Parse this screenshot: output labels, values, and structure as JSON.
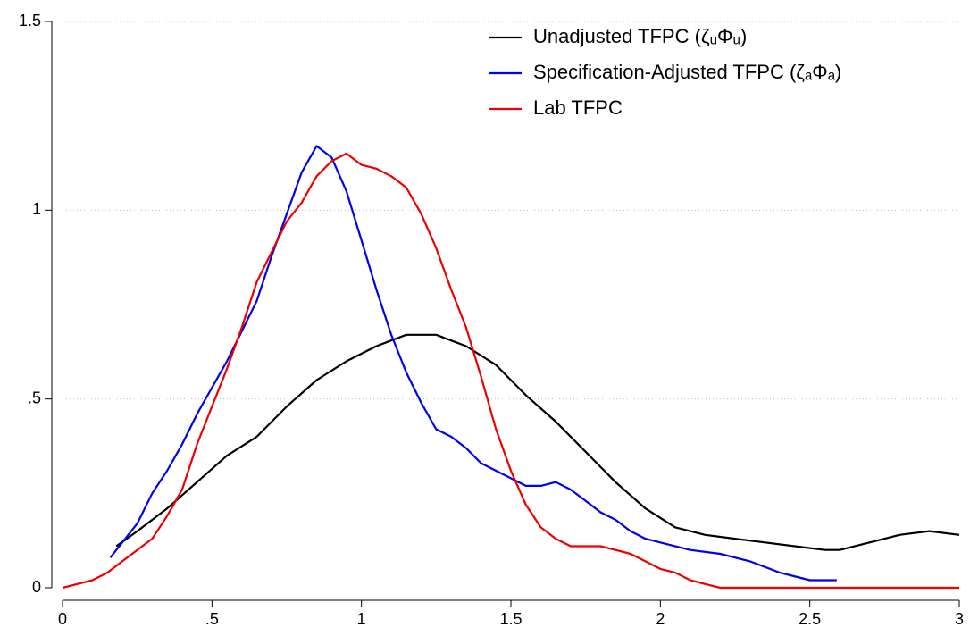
{
  "chart_data": {
    "type": "line",
    "series": [
      {
        "name": "Unadjusted TFPC (ζᵤΦᵤ)",
        "color": "#000000",
        "x": [
          0.18,
          0.25,
          0.35,
          0.45,
          0.55,
          0.65,
          0.75,
          0.85,
          0.95,
          1.05,
          1.15,
          1.25,
          1.35,
          1.45,
          1.55,
          1.65,
          1.75,
          1.85,
          1.95,
          2.05,
          2.15,
          2.25,
          2.35,
          2.45,
          2.55,
          2.6,
          2.7,
          2.8,
          2.9,
          3
        ],
        "values": [
          0.11,
          0.15,
          0.21,
          0.28,
          0.35,
          0.4,
          0.48,
          0.55,
          0.6,
          0.64,
          0.67,
          0.67,
          0.64,
          0.59,
          0.51,
          0.44,
          0.36,
          0.28,
          0.21,
          0.16,
          0.14,
          0.13,
          0.12,
          0.11,
          0.1,
          0.1,
          0.12,
          0.14,
          0.15,
          0.14
        ]
      },
      {
        "name": "Specification-Adjusted TFPC (ζₐΦₐ)",
        "color": "#0000ee",
        "x": [
          0.16,
          0.2,
          0.25,
          0.3,
          0.35,
          0.4,
          0.45,
          0.5,
          0.55,
          0.6,
          0.65,
          0.7,
          0.75,
          0.8,
          0.85,
          0.9,
          0.95,
          1,
          1.05,
          1.1,
          1.15,
          1.2,
          1.25,
          1.3,
          1.35,
          1.4,
          1.45,
          1.5,
          1.55,
          1.6,
          1.65,
          1.7,
          1.75,
          1.8,
          1.85,
          1.9,
          1.95,
          2,
          2.1,
          2.2,
          2.3,
          2.4,
          2.5,
          2.59
        ],
        "values": [
          0.08,
          0.12,
          0.17,
          0.25,
          0.31,
          0.38,
          0.46,
          0.53,
          0.6,
          0.68,
          0.76,
          0.88,
          0.99,
          1.1,
          1.17,
          1.14,
          1.05,
          0.92,
          0.79,
          0.67,
          0.57,
          0.49,
          0.42,
          0.4,
          0.37,
          0.33,
          0.31,
          0.29,
          0.27,
          0.27,
          0.28,
          0.26,
          0.23,
          0.2,
          0.18,
          0.15,
          0.13,
          0.12,
          0.1,
          0.09,
          0.07,
          0.04,
          0.02,
          0.02
        ]
      },
      {
        "name": "Lab TFPC",
        "color": "#ee0000",
        "x": [
          0,
          0.05,
          0.1,
          0.15,
          0.2,
          0.25,
          0.3,
          0.35,
          0.4,
          0.45,
          0.5,
          0.55,
          0.6,
          0.65,
          0.7,
          0.75,
          0.8,
          0.85,
          0.9,
          0.95,
          1,
          1.05,
          1.1,
          1.15,
          1.2,
          1.25,
          1.3,
          1.35,
          1.4,
          1.45,
          1.5,
          1.55,
          1.6,
          1.65,
          1.7,
          1.75,
          1.8,
          1.85,
          1.9,
          1.95,
          2,
          2.05,
          2.1,
          2.15,
          2.2,
          2.5,
          3
        ],
        "values": [
          0,
          0.01,
          0.02,
          0.04,
          0.07,
          0.1,
          0.13,
          0.19,
          0.26,
          0.38,
          0.48,
          0.58,
          0.69,
          0.81,
          0.89,
          0.97,
          1.02,
          1.09,
          1.13,
          1.15,
          1.12,
          1.11,
          1.09,
          1.06,
          0.99,
          0.9,
          0.79,
          0.69,
          0.56,
          0.42,
          0.31,
          0.22,
          0.16,
          0.13,
          0.11,
          0.11,
          0.11,
          0.1,
          0.09,
          0.07,
          0.05,
          0.04,
          0.02,
          0.01,
          0,
          0,
          0
        ]
      }
    ],
    "xlim": [
      0,
      3
    ],
    "xticks": [
      0,
      {
        "value": 0.5,
        "label": ".5"
      },
      1,
      1.5,
      2,
      2.5,
      3
    ],
    "ylim": [
      0,
      1.5
    ],
    "yticks": [
      0,
      {
        "value": 0.5,
        "label": ".5"
      },
      1,
      1.5
    ],
    "grid": true,
    "legend": "top-right"
  }
}
